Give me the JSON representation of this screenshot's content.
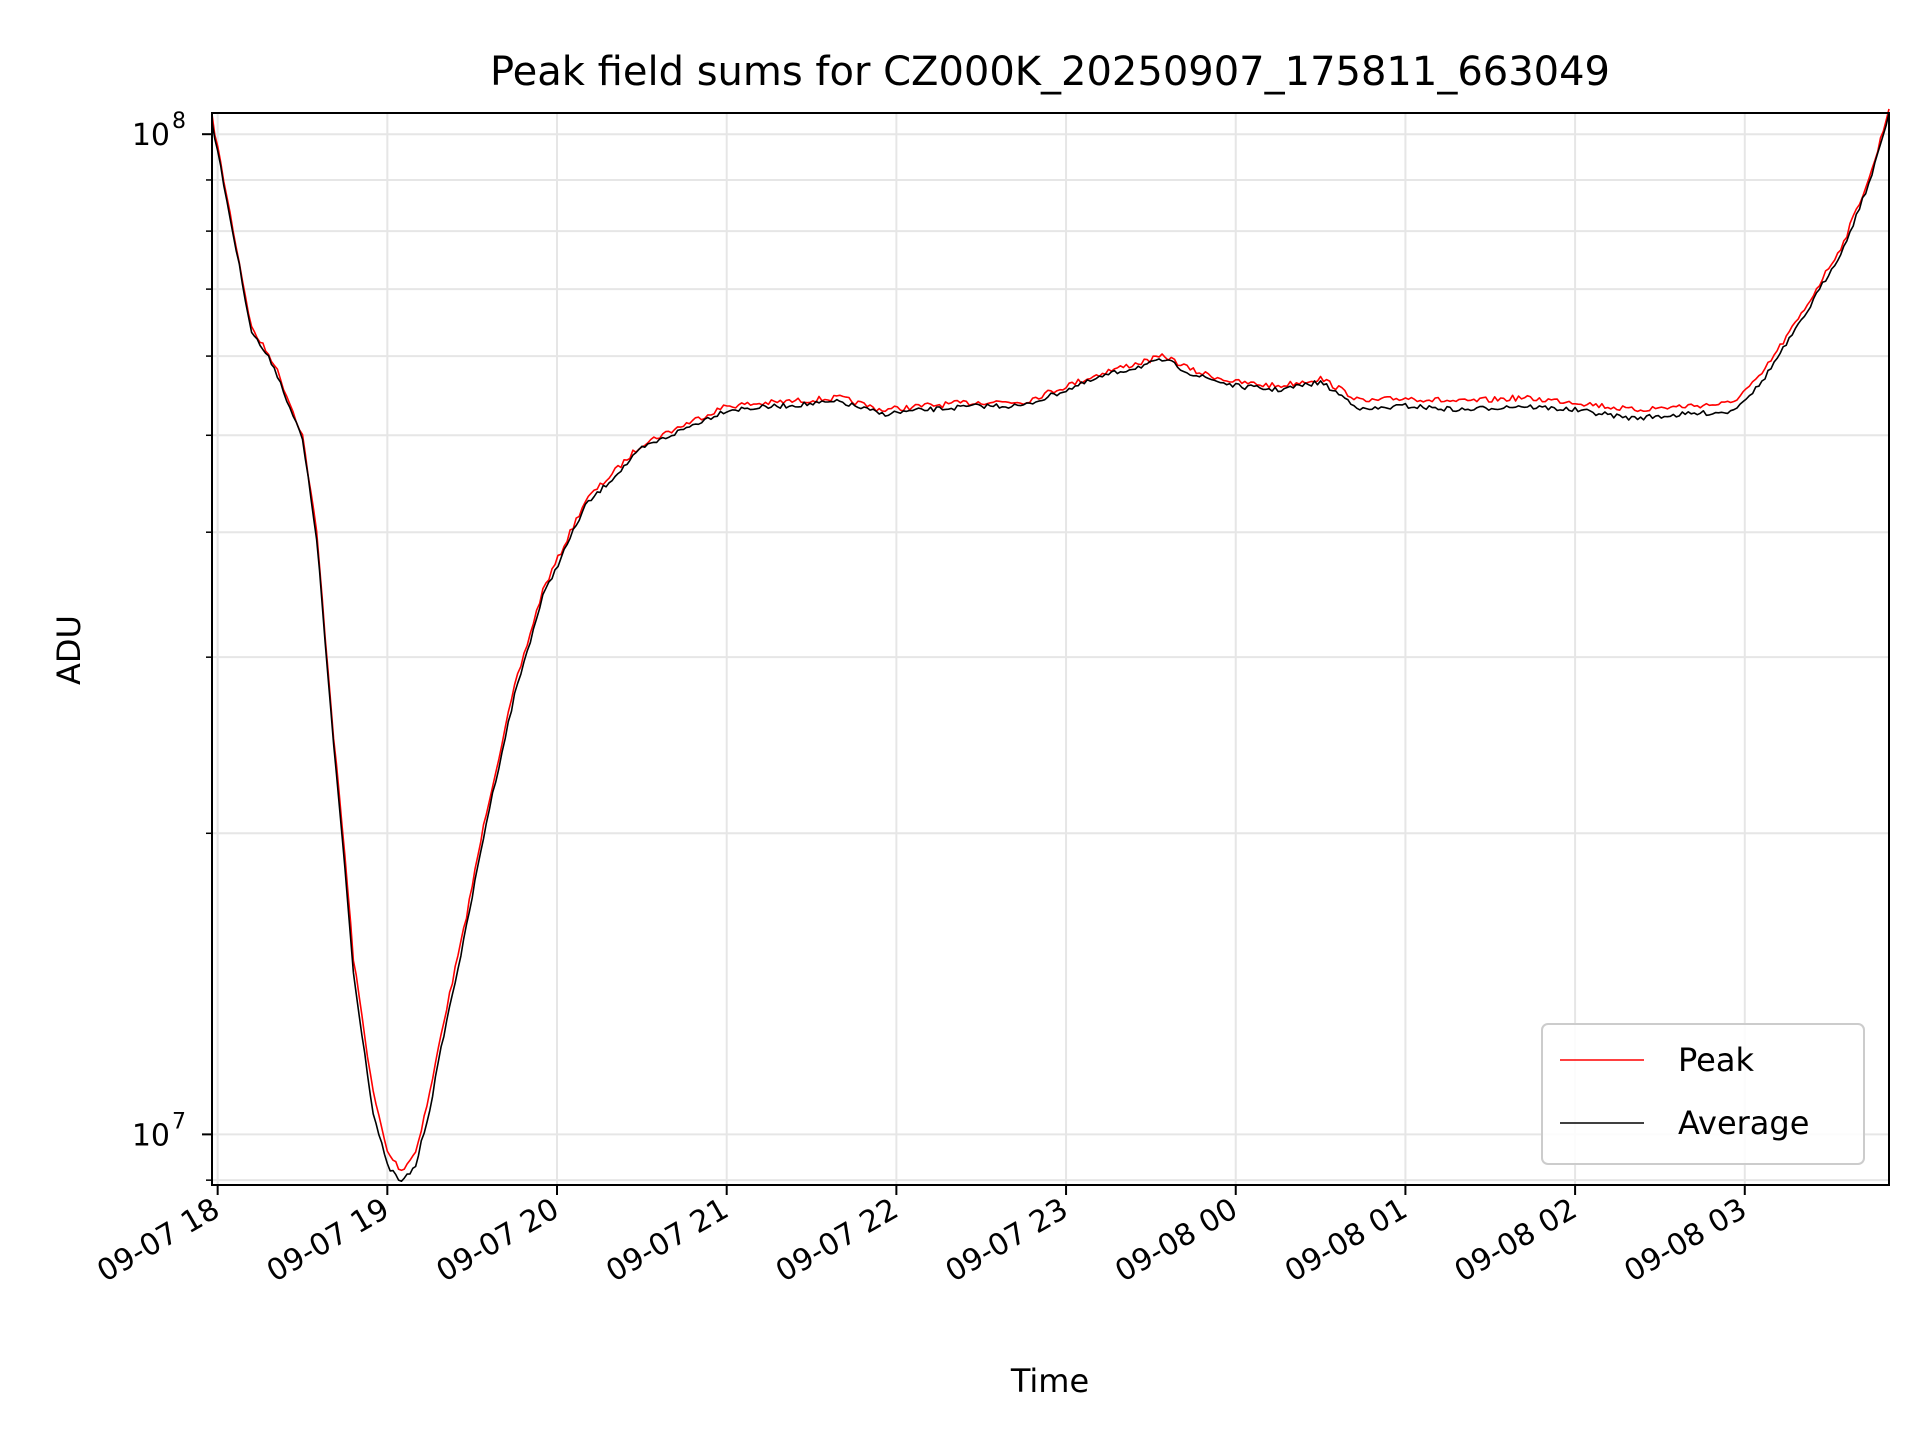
{
  "chart_data": {
    "type": "line",
    "title": "Peak field sums for CZ000K_20250907_175811_663049",
    "xlabel": "Time",
    "ylabel": "ADU",
    "y_scale": "log",
    "ylim": [
      8900000,
      105000000
    ],
    "y_ticks": [
      {
        "label": "10",
        "exp": "7",
        "value": 10000000
      },
      {
        "label": "10",
        "exp": "8",
        "value": 100000000
      }
    ],
    "y_minor_ticks": [
      9000000,
      20000000,
      30000000,
      40000000,
      50000000,
      60000000,
      70000000,
      80000000,
      90000000
    ],
    "x_ticks": [
      "09-07 18",
      "09-07 19",
      "09-07 20",
      "09-07 21",
      "09-07 22",
      "09-07 23",
      "09-08 00",
      "09-08 01",
      "09-08 02",
      "09-08 03"
    ],
    "x_start": "2025-09-07 17:58",
    "x_end": "2025-09-08 03:51",
    "grid": true,
    "legend_position": "lower right",
    "series": [
      {
        "name": "Peak",
        "color": "#ff0000",
        "note": "approximate keypoints of the trace",
        "points": [
          [
            "2025-09-07 17:58",
            104000000
          ],
          [
            "2025-09-07 18:00",
            97000000
          ],
          [
            "2025-09-07 18:12",
            64000000
          ],
          [
            "2025-09-07 18:20",
            59000000
          ],
          [
            "2025-09-07 18:30",
            50000000
          ],
          [
            "2025-09-07 18:35",
            40000000
          ],
          [
            "2025-09-07 18:41",
            25000000
          ],
          [
            "2025-09-07 18:45",
            19000000
          ],
          [
            "2025-09-07 18:48",
            15000000
          ],
          [
            "2025-09-07 18:55",
            11000000
          ],
          [
            "2025-09-07 19:00",
            9600000
          ],
          [
            "2025-09-07 19:05",
            9200000
          ],
          [
            "2025-09-07 19:10",
            9600000
          ],
          [
            "2025-09-07 19:15",
            11000000
          ],
          [
            "2025-09-07 19:20",
            13000000
          ],
          [
            "2025-09-07 19:27",
            16000000
          ],
          [
            "2025-09-07 19:35",
            21000000
          ],
          [
            "2025-09-07 19:45",
            28000000
          ],
          [
            "2025-09-07 19:55",
            35000000
          ],
          [
            "2025-09-07 20:10",
            43000000
          ],
          [
            "2025-09-07 20:30",
            49000000
          ],
          [
            "2025-09-07 20:50",
            52000000
          ],
          [
            "2025-09-07 21:00",
            53500000
          ],
          [
            "2025-09-07 21:20",
            54000000
          ],
          [
            "2025-09-07 21:40",
            54500000
          ],
          [
            "2025-09-07 21:55",
            53000000
          ],
          [
            "2025-09-07 22:10",
            53500000
          ],
          [
            "2025-09-07 22:30",
            54000000
          ],
          [
            "2025-09-07 22:45",
            54000000
          ],
          [
            "2025-09-07 23:00",
            56000000
          ],
          [
            "2025-09-07 23:15",
            58000000
          ],
          [
            "2025-09-07 23:35",
            60000000
          ],
          [
            "2025-09-07 23:45",
            58000000
          ],
          [
            "2025-09-08 00:00",
            56500000
          ],
          [
            "2025-09-08 00:15",
            56000000
          ],
          [
            "2025-09-08 00:30",
            57000000
          ],
          [
            "2025-09-08 00:45",
            54000000
          ],
          [
            "2025-09-08 01:00",
            54500000
          ],
          [
            "2025-09-08 01:20",
            54000000
          ],
          [
            "2025-09-08 01:40",
            54500000
          ],
          [
            "2025-09-08 02:00",
            54000000
          ],
          [
            "2025-09-08 02:20",
            53000000
          ],
          [
            "2025-09-08 02:40",
            53500000
          ],
          [
            "2025-09-08 02:55",
            53800000
          ],
          [
            "2025-09-08 03:05",
            57000000
          ],
          [
            "2025-09-08 03:20",
            66000000
          ],
          [
            "2025-09-08 03:35",
            78000000
          ],
          [
            "2025-09-08 03:45",
            92000000
          ],
          [
            "2025-09-08 03:51",
            106000000
          ]
        ]
      },
      {
        "name": "Average",
        "color": "#000000",
        "note": "approximate keypoints of the trace",
        "points": [
          [
            "2025-09-07 17:58",
            103000000
          ],
          [
            "2025-09-07 18:00",
            96000000
          ],
          [
            "2025-09-07 18:12",
            63500000
          ],
          [
            "2025-09-07 18:20",
            58500000
          ],
          [
            "2025-09-07 18:30",
            49500000
          ],
          [
            "2025-09-07 18:35",
            39500000
          ],
          [
            "2025-09-07 18:41",
            24500000
          ],
          [
            "2025-09-07 18:45",
            18500000
          ],
          [
            "2025-09-07 18:48",
            14500000
          ],
          [
            "2025-09-07 18:55",
            10500000
          ],
          [
            "2025-09-07 19:00",
            9300000
          ],
          [
            "2025-09-07 19:05",
            8950000
          ],
          [
            "2025-09-07 19:10",
            9300000
          ],
          [
            "2025-09-07 19:15",
            10600000
          ],
          [
            "2025-09-07 19:20",
            12600000
          ],
          [
            "2025-09-07 19:27",
            15600000
          ],
          [
            "2025-09-07 19:35",
            20500000
          ],
          [
            "2025-09-07 19:45",
            27500000
          ],
          [
            "2025-09-07 19:55",
            34500000
          ],
          [
            "2025-09-07 20:10",
            42500000
          ],
          [
            "2025-09-07 20:30",
            48500000
          ],
          [
            "2025-09-07 20:50",
            51500000
          ],
          [
            "2025-09-07 21:00",
            53000000
          ],
          [
            "2025-09-07 21:20",
            53500000
          ],
          [
            "2025-09-07 21:40",
            54000000
          ],
          [
            "2025-09-07 21:55",
            52500000
          ],
          [
            "2025-09-07 22:10",
            53000000
          ],
          [
            "2025-09-07 22:30",
            53500000
          ],
          [
            "2025-09-07 22:45",
            53500000
          ],
          [
            "2025-09-07 23:00",
            55500000
          ],
          [
            "2025-09-07 23:15",
            57500000
          ],
          [
            "2025-09-07 23:35",
            59500000
          ],
          [
            "2025-09-07 23:45",
            57500000
          ],
          [
            "2025-09-08 00:00",
            56000000
          ],
          [
            "2025-09-08 00:15",
            55500000
          ],
          [
            "2025-09-08 00:30",
            56500000
          ],
          [
            "2025-09-08 00:45",
            53000000
          ],
          [
            "2025-09-08 01:00",
            53500000
          ],
          [
            "2025-09-08 01:20",
            53000000
          ],
          [
            "2025-09-08 01:40",
            53500000
          ],
          [
            "2025-09-08 02:00",
            53000000
          ],
          [
            "2025-09-08 02:20",
            52000000
          ],
          [
            "2025-09-08 02:40",
            52500000
          ],
          [
            "2025-09-08 02:55",
            52800000
          ],
          [
            "2025-09-08 03:05",
            56000000
          ],
          [
            "2025-09-08 03:20",
            65000000
          ],
          [
            "2025-09-08 03:35",
            77000000
          ],
          [
            "2025-09-08 03:45",
            91000000
          ],
          [
            "2025-09-08 03:51",
            105000000
          ]
        ]
      }
    ]
  }
}
